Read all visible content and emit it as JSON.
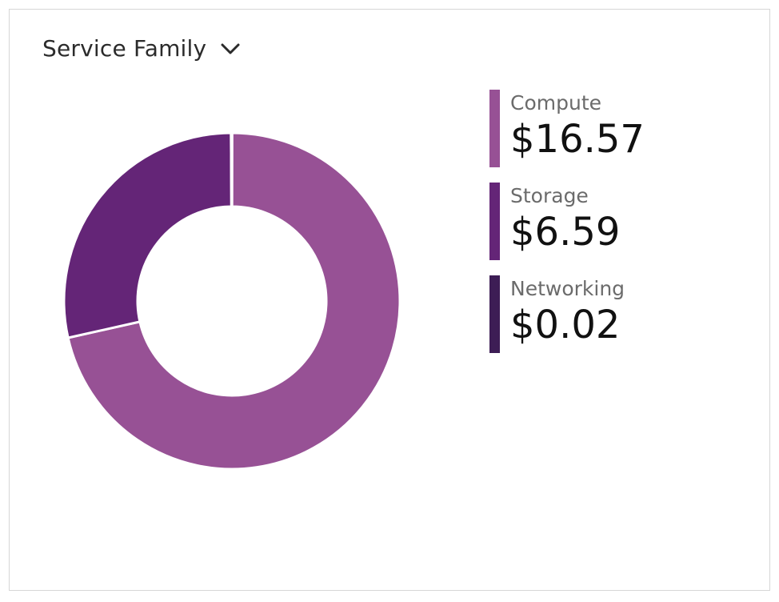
{
  "selector": {
    "label": "Service Family",
    "icon": "chevron-down-icon"
  },
  "colors": {
    "compute": "#975195",
    "storage": "#642577",
    "networking": "#3d1d55"
  },
  "chart_data": {
    "type": "pie",
    "donut": true,
    "categories": [
      "Compute",
      "Storage",
      "Networking"
    ],
    "values": [
      16.57,
      6.59,
      0.02
    ],
    "display_values": [
      "$16.57",
      "$6.59",
      "$0.02"
    ],
    "legend_position": "right"
  }
}
